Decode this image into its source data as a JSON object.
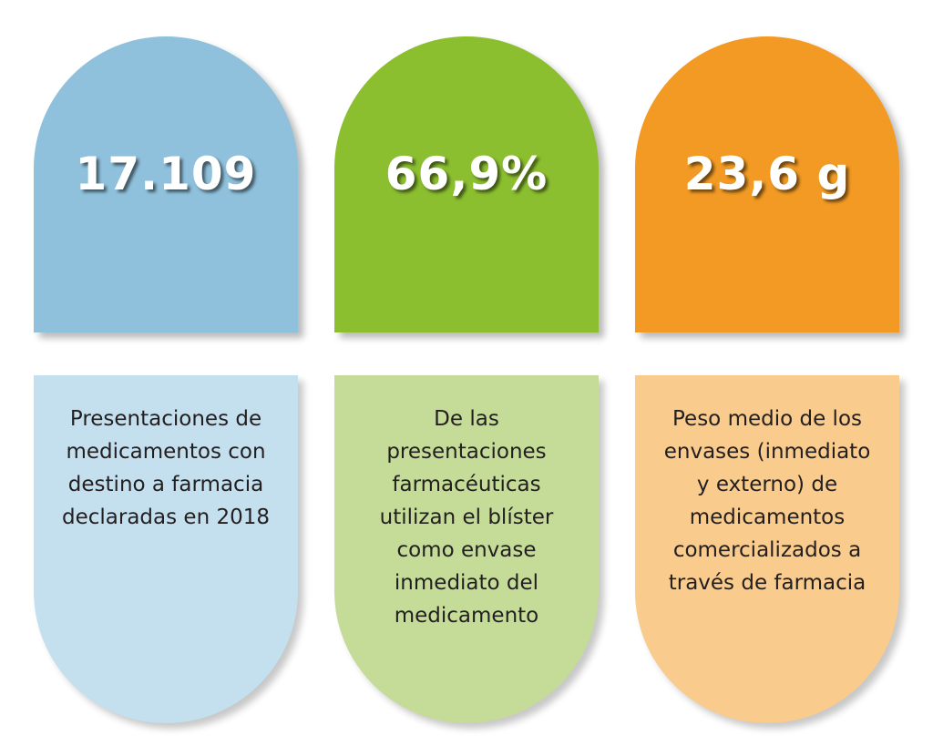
{
  "cards": [
    {
      "value": "17.109",
      "lines": [
        "Presentaciones de",
        "medicamentos con",
        "destino a farmacia",
        "declaradas en 2018"
      ]
    },
    {
      "value": "66,9%",
      "lines": [
        "De las",
        "presentaciones",
        "farmacéuticas",
        "utilizan el blíster",
        "como envase",
        "inmediato del",
        "medicamento"
      ]
    },
    {
      "value": "23,6 g",
      "lines": [
        "Peso medio de los",
        "envases (inmediato",
        "y externo) de",
        "medicamentos",
        "comercializados a",
        "través de farmacia"
      ]
    }
  ],
  "colors": {
    "blue": "#8fc1dc",
    "blue_light": "#c4e0ee",
    "green": "#8bbf2f",
    "green_light": "#c5dc98",
    "orange": "#f29a23",
    "orange_light": "#f9cb8c"
  }
}
